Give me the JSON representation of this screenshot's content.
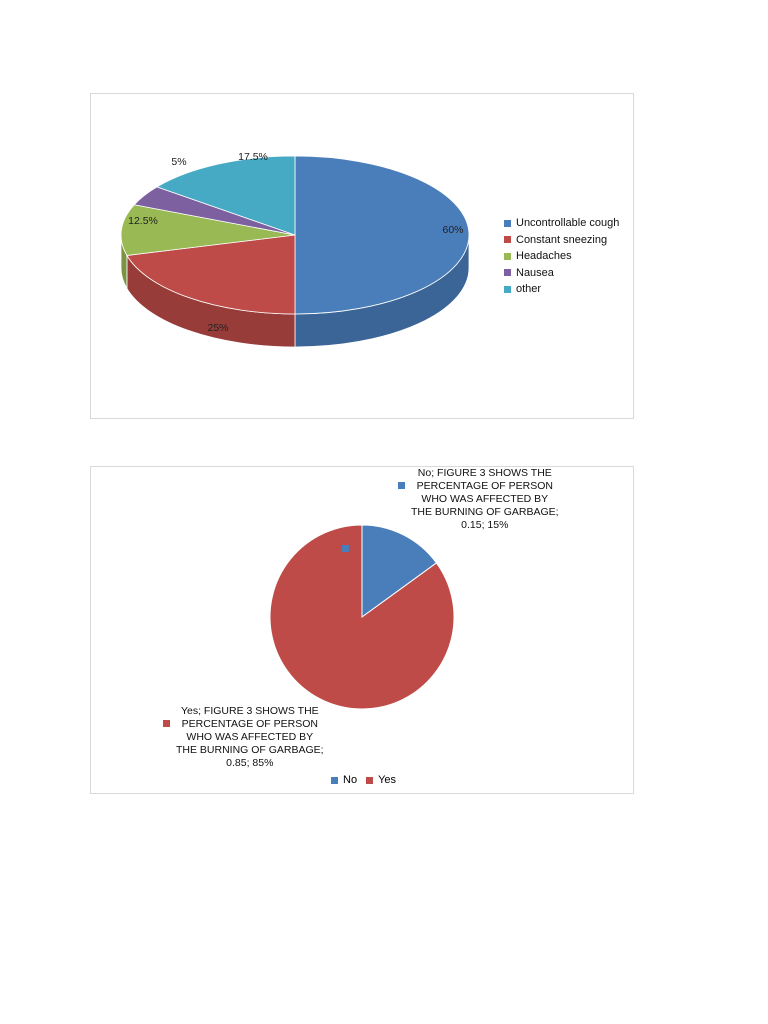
{
  "charts": [
    {
      "chart_data": {
        "type": "pie",
        "style": "3d",
        "categories": [
          "Uncontrollable cough",
          "Constant sneezing",
          "Headaches",
          "Nausea",
          "other"
        ],
        "values": [
          60,
          25,
          12.5,
          5,
          17.5
        ],
        "data_labels": [
          "60%",
          "25%",
          "12.5%",
          "5%",
          "17.5%"
        ],
        "colors": [
          "#4a7ebb",
          "#be4b48",
          "#98b954",
          "#7d60a0",
          "#46aac5"
        ],
        "legend_position": "right"
      }
    },
    {
      "chart_data": {
        "type": "pie",
        "categories": [
          "No",
          "Yes"
        ],
        "values": [
          0.15,
          0.85
        ],
        "data_labels": [
          [
            "No; FIGURE 3 SHOWS THE",
            "PERCENTAGE OF PERSON",
            "WHO WAS AFFECTED BY",
            "THE BURNING OF GARBAGE;",
            "0.15; 15%"
          ],
          [
            "Yes; FIGURE 3 SHOWS THE",
            "PERCENTAGE OF PERSON",
            "WHO WAS AFFECTED BY",
            "THE BURNING OF GARBAGE;",
            "0.85; 85%"
          ]
        ],
        "colors": [
          "#4a7ebb",
          "#be4b48"
        ],
        "legend_position": "bottom"
      }
    }
  ]
}
